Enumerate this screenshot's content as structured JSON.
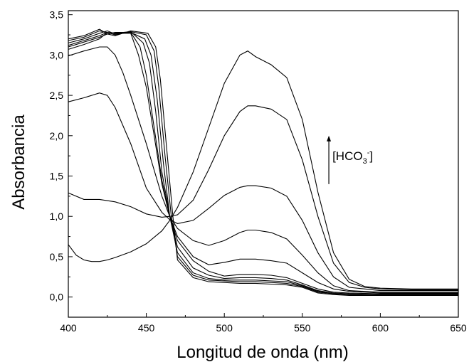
{
  "chart_data": {
    "type": "line",
    "title": "",
    "xlabel": "Longitud de onda (nm)",
    "ylabel": "Absorbancia",
    "xlim": [
      400,
      650
    ],
    "ylim": [
      -0.25,
      3.55
    ],
    "x_ticks": [
      400,
      450,
      500,
      550,
      600,
      650
    ],
    "x_tick_labels": [
      "400",
      "450",
      "500",
      "550",
      "600",
      "650"
    ],
    "y_ticks": [
      0.0,
      0.5,
      1.0,
      1.5,
      2.0,
      2.5,
      3.0,
      3.5
    ],
    "y_tick_labels": [
      "0,0",
      "0,5",
      "1,0",
      "1,5",
      "2,0",
      "2,5",
      "3,0",
      "3,5"
    ],
    "grid": false,
    "legend": "none",
    "line_color": "#000000",
    "annotation": {
      "text_main": "[HCO",
      "text_sub": "3",
      "text_sup": "-",
      "text_close": "]",
      "arrow": "up",
      "x": 567,
      "y_from": 1.4,
      "y_to": 2.0
    },
    "series": [
      {
        "x": [
          400,
          405,
          410,
          415,
          420,
          425,
          430,
          440,
          450,
          460,
          465,
          470,
          480,
          490,
          500,
          510,
          515,
          520,
          530,
          540,
          550,
          560,
          570,
          580,
          590,
          600,
          620,
          650
        ],
        "y": [
          0.65,
          0.52,
          0.46,
          0.44,
          0.44,
          0.46,
          0.49,
          0.56,
          0.66,
          0.82,
          0.95,
          1.11,
          1.55,
          2.1,
          2.65,
          3.0,
          3.05,
          2.98,
          2.88,
          2.72,
          2.2,
          1.3,
          0.55,
          0.22,
          0.13,
          0.11,
          0.1,
          0.1
        ]
      },
      {
        "x": [
          400,
          410,
          420,
          430,
          440,
          450,
          460,
          465,
          470,
          480,
          490,
          500,
          510,
          515,
          520,
          530,
          540,
          550,
          560,
          570,
          580,
          590,
          600,
          620,
          650
        ],
        "y": [
          1.29,
          1.21,
          1.21,
          1.18,
          1.12,
          1.03,
          0.99,
          1.0,
          1.02,
          1.2,
          1.58,
          2.0,
          2.3,
          2.37,
          2.37,
          2.33,
          2.2,
          1.7,
          1.0,
          0.42,
          0.18,
          0.12,
          0.1,
          0.09,
          0.09
        ]
      },
      {
        "x": [
          400,
          410,
          420,
          425,
          430,
          440,
          450,
          460,
          465,
          470,
          480,
          490,
          500,
          510,
          515,
          520,
          530,
          540,
          550,
          560,
          570,
          580,
          600,
          650
        ],
        "y": [
          2.42,
          2.47,
          2.53,
          2.5,
          2.35,
          1.9,
          1.35,
          1.05,
          0.96,
          0.91,
          0.95,
          1.1,
          1.26,
          1.36,
          1.38,
          1.38,
          1.35,
          1.25,
          0.95,
          0.55,
          0.25,
          0.12,
          0.08,
          0.08
        ]
      },
      {
        "x": [
          400,
          410,
          420,
          425,
          430,
          435,
          440,
          450,
          460,
          465,
          470,
          480,
          490,
          500,
          510,
          515,
          520,
          530,
          540,
          550,
          560,
          570,
          580,
          600,
          650
        ],
        "y": [
          2.99,
          3.05,
          3.1,
          3.1,
          3.0,
          2.78,
          2.5,
          1.9,
          1.25,
          1.0,
          0.85,
          0.7,
          0.64,
          0.7,
          0.8,
          0.83,
          0.83,
          0.8,
          0.72,
          0.52,
          0.3,
          0.14,
          0.08,
          0.06,
          0.06
        ]
      },
      {
        "x": [
          400,
          410,
          420,
          425,
          430,
          440,
          445,
          450,
          455,
          460,
          465,
          470,
          480,
          490,
          500,
          510,
          520,
          530,
          540,
          550,
          560,
          570,
          580,
          600,
          650
        ],
        "y": [
          3.07,
          3.13,
          3.2,
          3.28,
          3.27,
          3.27,
          3.0,
          2.6,
          2.0,
          1.4,
          1.0,
          0.75,
          0.5,
          0.4,
          0.43,
          0.47,
          0.47,
          0.45,
          0.42,
          0.3,
          0.18,
          0.1,
          0.07,
          0.05,
          0.05
        ]
      },
      {
        "x": [
          400,
          410,
          420,
          425,
          430,
          440,
          446,
          450,
          455,
          460,
          465,
          470,
          480,
          490,
          500,
          510,
          520,
          530,
          540,
          550,
          560,
          570,
          580,
          600,
          650
        ],
        "y": [
          3.1,
          3.16,
          3.22,
          3.26,
          3.28,
          3.28,
          3.1,
          2.75,
          2.1,
          1.45,
          1.0,
          0.7,
          0.45,
          0.32,
          0.26,
          0.28,
          0.28,
          0.27,
          0.24,
          0.17,
          0.1,
          0.06,
          0.05,
          0.04,
          0.04
        ]
      },
      {
        "x": [
          400,
          410,
          420,
          425,
          430,
          440,
          448,
          452,
          456,
          460,
          465,
          470,
          480,
          490,
          500,
          510,
          520,
          530,
          540,
          550,
          560,
          570,
          580,
          600,
          650
        ],
        "y": [
          3.12,
          3.18,
          3.24,
          3.28,
          3.27,
          3.29,
          3.15,
          2.9,
          2.3,
          1.55,
          1.0,
          0.62,
          0.36,
          0.27,
          0.23,
          0.24,
          0.24,
          0.23,
          0.21,
          0.15,
          0.08,
          0.05,
          0.04,
          0.03,
          0.03
        ]
      },
      {
        "x": [
          400,
          410,
          420,
          425,
          430,
          440,
          449,
          453,
          457,
          461,
          465,
          470,
          480,
          490,
          500,
          510,
          520,
          530,
          540,
          550,
          560,
          570,
          580,
          600,
          650
        ],
        "y": [
          3.15,
          3.2,
          3.27,
          3.3,
          3.26,
          3.28,
          3.2,
          3.0,
          2.45,
          1.65,
          1.0,
          0.55,
          0.3,
          0.23,
          0.21,
          0.21,
          0.21,
          0.2,
          0.19,
          0.14,
          0.07,
          0.04,
          0.03,
          0.03,
          0.03
        ]
      },
      {
        "x": [
          400,
          410,
          420,
          425,
          430,
          440,
          450,
          455,
          458,
          462,
          466,
          470,
          480,
          490,
          500,
          510,
          520,
          530,
          540,
          550,
          560,
          570,
          580,
          600,
          650
        ],
        "y": [
          3.18,
          3.22,
          3.3,
          3.28,
          3.25,
          3.29,
          3.25,
          3.05,
          2.6,
          1.75,
          1.0,
          0.5,
          0.27,
          0.21,
          0.2,
          0.19,
          0.19,
          0.18,
          0.17,
          0.13,
          0.06,
          0.04,
          0.03,
          0.03,
          0.03
        ]
      },
      {
        "x": [
          400,
          410,
          420,
          425,
          430,
          440,
          451,
          456,
          459,
          463,
          467,
          470,
          480,
          490,
          500,
          510,
          520,
          530,
          540,
          550,
          560,
          570,
          580,
          600,
          650
        ],
        "y": [
          3.2,
          3.24,
          3.32,
          3.26,
          3.24,
          3.3,
          3.27,
          3.1,
          2.7,
          1.85,
          1.0,
          0.46,
          0.24,
          0.19,
          0.18,
          0.17,
          0.17,
          0.16,
          0.15,
          0.12,
          0.05,
          0.03,
          0.02,
          0.02,
          0.02
        ]
      }
    ]
  }
}
